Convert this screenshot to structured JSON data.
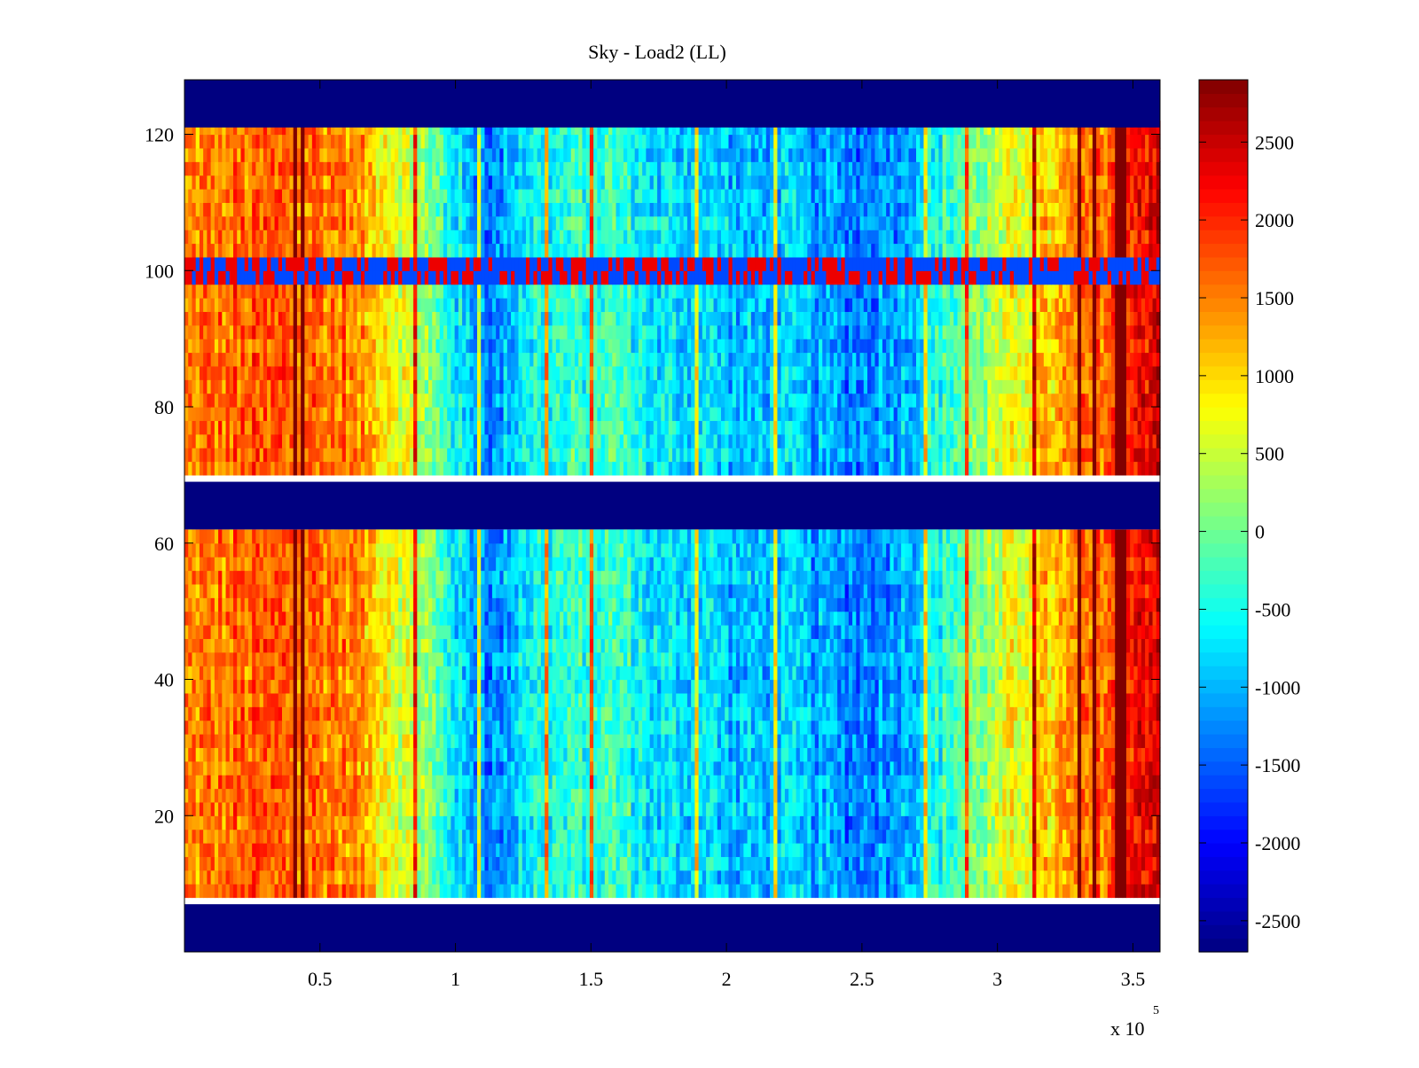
{
  "chart_data": {
    "type": "heatmap",
    "title": "Sky - Load2 (LL)",
    "xlabel": "",
    "ylabel": "",
    "x_multiplier_label": "x 10",
    "x_multiplier_exponent": "5",
    "xlim": [
      0,
      360000
    ],
    "ylim": [
      0,
      128
    ],
    "x_ticks": [
      50000,
      100000,
      150000,
      200000,
      250000,
      300000,
      350000
    ],
    "x_tick_labels": [
      "0.5",
      "1",
      "1.5",
      "2",
      "2.5",
      "3",
      "3.5"
    ],
    "y_ticks": [
      20,
      40,
      60,
      80,
      100,
      120
    ],
    "y_tick_labels": [
      "20",
      "40",
      "60",
      "80",
      "100",
      "120"
    ],
    "colorbar": {
      "clim": [
        -2700,
        2900
      ],
      "ticks": [
        2500,
        2000,
        1500,
        1000,
        500,
        0,
        -500,
        -1000,
        -1500,
        -2000,
        -2500
      ],
      "tick_labels": [
        "2500",
        "2000",
        "1500",
        "1000",
        "500",
        "0",
        "-500",
        "-1000",
        "-1500",
        "-2000",
        "-2500"
      ],
      "colormap": "jet"
    },
    "masked_rows": [
      {
        "from": 0,
        "to": 7,
        "value": -2700
      },
      {
        "from": 62,
        "to": 69,
        "value": -2700
      },
      {
        "from": 121,
        "to": 128,
        "value": -2700
      }
    ],
    "column_profile": {
      "x": [
        0,
        20000,
        40000,
        60000,
        75000,
        90000,
        105000,
        115000,
        125000,
        140000,
        160000,
        175000,
        190000,
        205000,
        220000,
        235000,
        250000,
        265000,
        280000,
        295000,
        310000,
        325000,
        340000,
        352000,
        360000
      ],
      "values": [
        1400,
        1600,
        1650,
        1500,
        900,
        100,
        -1000,
        -1300,
        -600,
        -400,
        -300,
        -800,
        -700,
        -1000,
        -900,
        -1100,
        -1300,
        -1000,
        -400,
        200,
        800,
        1200,
        1700,
        2300,
        2400
      ]
    },
    "row_band_y": 100,
    "grid": false
  }
}
